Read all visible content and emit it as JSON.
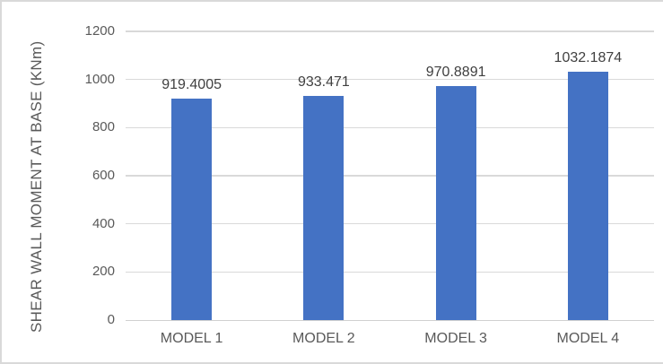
{
  "chart_data": {
    "type": "bar",
    "title": "",
    "categories": [
      "MODEL 1",
      "MODEL 2",
      "MODEL 3",
      "MODEL 4"
    ],
    "values": [
      919.4005,
      933.471,
      970.8891,
      1032.1874
    ],
    "value_labels": [
      "919.4005",
      "933.471",
      "970.8891",
      "1032.1874"
    ],
    "xlabel": "",
    "ylabel": "SHEAR WALL MOMENT AT BASE (KNm)",
    "ylim": [
      0,
      1200
    ],
    "yticks": [
      0,
      200,
      400,
      600,
      800,
      1000,
      1200
    ],
    "ytick_labels": [
      "0",
      "200",
      "400",
      "600",
      "800",
      "1000",
      "1200"
    ],
    "grid": "horizontal",
    "legend": "none",
    "data_labels_position": "outside-end",
    "colors": {
      "bar": "#4472C4",
      "gridline": "#D9D9D9",
      "axis_line": "#D0D0D0",
      "tick_text": "#595959",
      "category_text": "#595959",
      "data_label_text": "#404040",
      "border": "#D9D9D9",
      "background": "#FFFFFF"
    }
  }
}
